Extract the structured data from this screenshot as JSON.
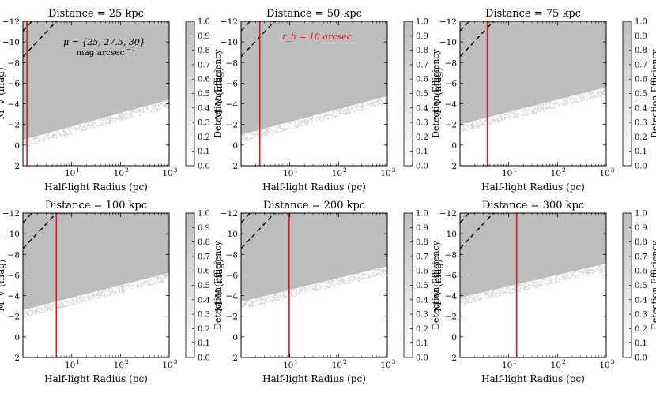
{
  "chart_data": {
    "type": "heatmap",
    "x_scale": "log",
    "xlim": [
      1,
      1000
    ],
    "ylim": [
      2,
      -12
    ],
    "xlabel": "Half-light Radius (pc)",
    "ylabel": "M_V (mag)",
    "colorbar_label": "Detection Efficiency",
    "colorbar_ticks": [
      "0.0",
      "0.1",
      "0.2",
      "0.3",
      "0.4",
      "0.5",
      "0.6",
      "0.7",
      "0.8",
      "0.9",
      "1.0"
    ],
    "x_tick_labels": [
      "10",
      "10",
      "10"
    ],
    "x_tick_exponents": [
      "1",
      "2",
      "3"
    ],
    "x_tick_values": [
      10,
      100,
      1000
    ],
    "y_tick_labels": [
      "−12",
      "−10",
      "−8",
      "−6",
      "−4",
      "−2",
      "0",
      "2"
    ],
    "y_tick_values": [
      -12,
      -10,
      -8,
      -6,
      -4,
      -2,
      0,
      2
    ],
    "surface_brightness_lines": [
      25,
      27.5,
      30
    ],
    "surface_brightness_label_line1": "μ = {25, 27.5, 30}",
    "surface_brightness_label_line2": "mag arcsec",
    "surface_brightness_label_exp": "−2",
    "angular_size_label": "r_h = 10 arcsec",
    "angular_size_arcsec": 10,
    "panels": [
      {
        "title": "Distance = 25 kpc",
        "distance_kpc": 25,
        "threshold_at_r1": -0.5,
        "threshold_slope": 1.3
      },
      {
        "title": "Distance = 50 kpc",
        "distance_kpc": 50,
        "threshold_at_r1": -1.0,
        "threshold_slope": 1.25
      },
      {
        "title": "Distance = 75 kpc",
        "distance_kpc": 75,
        "threshold_at_r1": -2.0,
        "threshold_slope": 1.2
      },
      {
        "title": "Distance = 100 kpc",
        "distance_kpc": 100,
        "threshold_at_r1": -2.6,
        "threshold_slope": 1.2
      },
      {
        "title": "Distance = 200 kpc",
        "distance_kpc": 200,
        "threshold_at_r1": -3.4,
        "threshold_slope": 1.15
      },
      {
        "title": "Distance = 300 kpc",
        "distance_kpc": 300,
        "threshold_at_r1": -3.8,
        "threshold_slope": 1.1
      }
    ],
    "colors": {
      "detected": "#bdbdbd",
      "angular_line": "#e8141a",
      "dashed": "#000000"
    }
  }
}
